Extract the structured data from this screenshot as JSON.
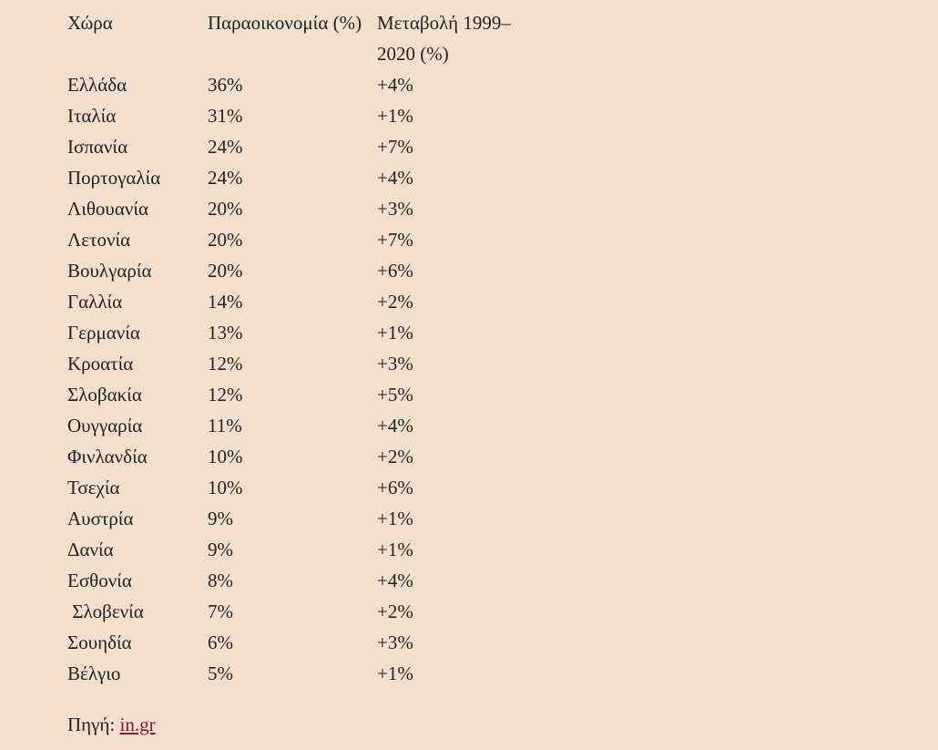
{
  "table": {
    "header": [
      "Χώρα",
      "Παραοικονομία (%)",
      "Μεταβολή 1999–2020 (%)"
    ],
    "rows": [
      [
        "Ελλάδα",
        "36%",
        "+4%"
      ],
      [
        "Ιταλία",
        "31%",
        "+1%"
      ],
      [
        "Ισπανία",
        "24%",
        "+7%"
      ],
      [
        "Πορτογαλία",
        "24%",
        "+4%"
      ],
      [
        "Λιθουανία",
        "20%",
        "+3%"
      ],
      [
        "Λετονία",
        "20%",
        "+7%"
      ],
      [
        "Βουλγαρία",
        "20%",
        "+6%"
      ],
      [
        "Γαλλία",
        "14%",
        "+2%"
      ],
      [
        "Γερμανία",
        "13%",
        "+1%"
      ],
      [
        "Κροατία",
        "12%",
        "+3%"
      ],
      [
        "Σλοβακία",
        "12%",
        "+5%"
      ],
      [
        "Ουγγαρία",
        "11%",
        "+4%"
      ],
      [
        "Φινλανδία",
        "10%",
        "+2%"
      ],
      [
        "Τσεχία",
        "10%",
        "+6%"
      ],
      [
        "Αυστρία",
        "9%",
        "+1%"
      ],
      [
        "Δανία",
        "9%",
        "+1%"
      ],
      [
        "Εσθονία",
        "8%",
        "+4%"
      ],
      [
        " Σλοβενία",
        "7%",
        "+2%"
      ],
      [
        "Σουηδία",
        "6%",
        "+3%"
      ],
      [
        "Βέλγιο",
        "5%",
        "+1%"
      ]
    ]
  },
  "source": {
    "label": "Πηγή:",
    "link": "in.gr"
  }
}
